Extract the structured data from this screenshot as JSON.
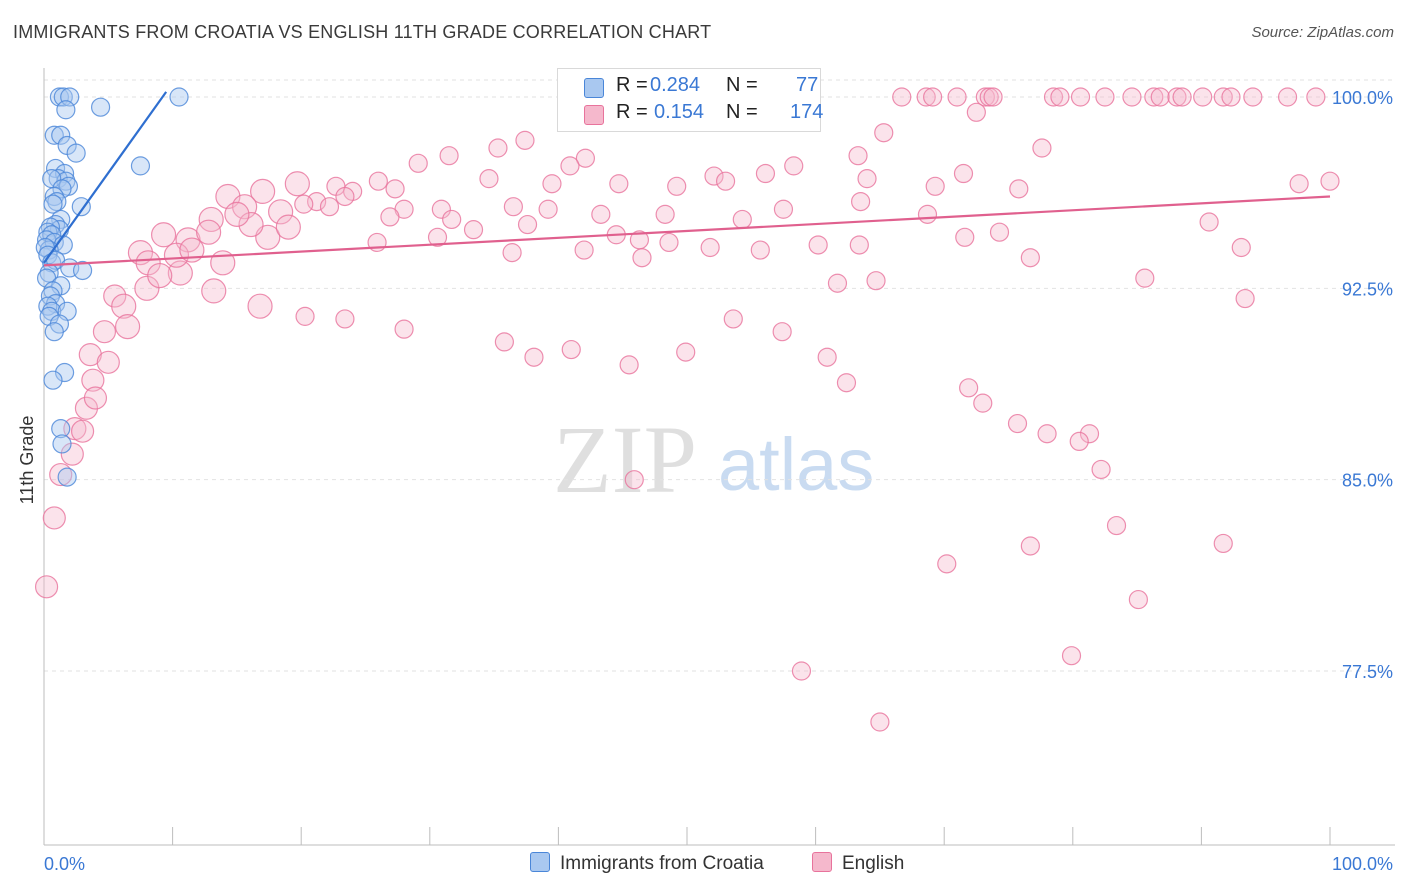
{
  "title": "IMMIGRANTS FROM CROATIA VS ENGLISH 11TH GRADE CORRELATION CHART",
  "source": "Source: ZipAtlas.com",
  "watermark": {
    "zip": "ZIP",
    "atlas": "atlas"
  },
  "legend": {
    "r_label": "R =",
    "n_label": "N =",
    "series": [
      {
        "name": "Immigrants from Croatia",
        "r": "0.284",
        "n": "77",
        "color": "#4a86d8",
        "fill": "#a9c8f0"
      },
      {
        "name": "English",
        "r": "0.154",
        "n": "174",
        "color": "#e8739c",
        "fill": "#f5b8cc"
      }
    ]
  },
  "chart_data": {
    "type": "scatter",
    "title": "IMMIGRANTS FROM CROATIA VS ENGLISH 11TH GRADE CORRELATION CHART",
    "xlabel": "",
    "ylabel": "11th Grade",
    "xlim": [
      0,
      100
    ],
    "ylim": [
      71.0,
      101.0
    ],
    "x_tick_labels": [
      "0.0%",
      "100.0%"
    ],
    "y_ticks": [
      {
        "value": 100.0,
        "label": "100.0%"
      },
      {
        "value": 92.5,
        "label": "92.5%"
      },
      {
        "value": 85.0,
        "label": "85.0%"
      },
      {
        "value": 77.5,
        "label": "77.5%"
      }
    ],
    "series": [
      {
        "name": "Immigrants from Croatia",
        "color": "#4a86d8",
        "fill": "#a9c8f0",
        "trend": {
          "x0": 0.0,
          "y0": 93.5,
          "x1": 9.5,
          "y1": 100.2
        },
        "points": [
          [
            1.2,
            100
          ],
          [
            1.5,
            100
          ],
          [
            2.0,
            100
          ],
          [
            10.5,
            100
          ],
          [
            4.4,
            99.6
          ],
          [
            1.7,
            99.5
          ],
          [
            0.8,
            98.5
          ],
          [
            1.3,
            98.5
          ],
          [
            1.8,
            98.1
          ],
          [
            2.5,
            97.8
          ],
          [
            7.5,
            97.3
          ],
          [
            0.9,
            97.2
          ],
          [
            1.6,
            97.0
          ],
          [
            1.1,
            96.8
          ],
          [
            1.7,
            96.7
          ],
          [
            0.6,
            96.8
          ],
          [
            1.9,
            96.5
          ],
          [
            1.4,
            96.4
          ],
          [
            0.8,
            96.1
          ],
          [
            1.0,
            95.9
          ],
          [
            0.7,
            95.8
          ],
          [
            2.9,
            95.7
          ],
          [
            1.3,
            95.2
          ],
          [
            0.9,
            95.0
          ],
          [
            1.2,
            94.8
          ],
          [
            0.5,
            94.9
          ],
          [
            0.3,
            94.7
          ],
          [
            0.6,
            94.6
          ],
          [
            0.2,
            94.4
          ],
          [
            0.8,
            94.3
          ],
          [
            1.5,
            94.2
          ],
          [
            0.4,
            94.0
          ],
          [
            0.1,
            94.1
          ],
          [
            0.3,
            93.8
          ],
          [
            0.6,
            93.5
          ],
          [
            0.9,
            93.6
          ],
          [
            2.0,
            93.3
          ],
          [
            3.0,
            93.2
          ],
          [
            0.4,
            93.1
          ],
          [
            0.2,
            92.9
          ],
          [
            1.3,
            92.6
          ],
          [
            0.7,
            92.4
          ],
          [
            0.5,
            92.2
          ],
          [
            0.9,
            91.9
          ],
          [
            0.3,
            91.8
          ],
          [
            0.6,
            91.6
          ],
          [
            1.8,
            91.6
          ],
          [
            0.4,
            91.4
          ],
          [
            1.2,
            91.1
          ],
          [
            0.8,
            90.8
          ],
          [
            1.6,
            89.2
          ],
          [
            0.7,
            88.9
          ],
          [
            1.3,
            87.0
          ],
          [
            1.4,
            86.4
          ],
          [
            1.8,
            85.1
          ]
        ]
      },
      {
        "name": "English",
        "color": "#e8739c",
        "fill": "#f5b8cc",
        "trend": {
          "x0": 0.0,
          "y0": 93.4,
          "x1": 100.0,
          "y1": 96.1
        },
        "points": [
          [
            66.7,
            100
          ],
          [
            68.6,
            100
          ],
          [
            69.1,
            100
          ],
          [
            71.0,
            100
          ],
          [
            73.2,
            100
          ],
          [
            73.5,
            100
          ],
          [
            73.8,
            100
          ],
          [
            78.5,
            100
          ],
          [
            79.0,
            100
          ],
          [
            80.6,
            100
          ],
          [
            82.5,
            100
          ],
          [
            84.6,
            100
          ],
          [
            86.3,
            100
          ],
          [
            86.8,
            100
          ],
          [
            88.1,
            100
          ],
          [
            88.5,
            100
          ],
          [
            90.1,
            100
          ],
          [
            91.7,
            100
          ],
          [
            92.3,
            100
          ],
          [
            94.0,
            100
          ],
          [
            96.7,
            100
          ],
          [
            98.9,
            100
          ],
          [
            59.3,
            99.5
          ],
          [
            72.5,
            99.4
          ],
          [
            53.0,
            99.6
          ],
          [
            65.3,
            98.6
          ],
          [
            77.6,
            98.0
          ],
          [
            37.4,
            98.3
          ],
          [
            35.3,
            98.0
          ],
          [
            42.1,
            97.6
          ],
          [
            31.5,
            97.7
          ],
          [
            29.1,
            97.4
          ],
          [
            63.3,
            97.7
          ],
          [
            58.3,
            97.3
          ],
          [
            71.5,
            97.0
          ],
          [
            64.0,
            96.8
          ],
          [
            56.1,
            97.0
          ],
          [
            52.1,
            96.9
          ],
          [
            40.9,
            97.3
          ],
          [
            26.0,
            96.7
          ],
          [
            27.3,
            96.4
          ],
          [
            22.7,
            96.5
          ],
          [
            24.0,
            96.3
          ],
          [
            19.7,
            96.6
          ],
          [
            17.0,
            96.3
          ],
          [
            23.4,
            96.1
          ],
          [
            34.6,
            96.8
          ],
          [
            39.5,
            96.6
          ],
          [
            44.7,
            96.6
          ],
          [
            49.2,
            96.5
          ],
          [
            53.0,
            96.7
          ],
          [
            69.3,
            96.5
          ],
          [
            75.8,
            96.4
          ],
          [
            100.0,
            96.7
          ],
          [
            14.3,
            96.1
          ],
          [
            15.6,
            95.7
          ],
          [
            18.4,
            95.5
          ],
          [
            21.2,
            95.9
          ],
          [
            28.0,
            95.6
          ],
          [
            30.9,
            95.6
          ],
          [
            36.5,
            95.7
          ],
          [
            39.2,
            95.6
          ],
          [
            43.3,
            95.4
          ],
          [
            48.3,
            95.4
          ],
          [
            54.3,
            95.2
          ],
          [
            57.5,
            95.6
          ],
          [
            63.5,
            95.9
          ],
          [
            68.7,
            95.4
          ],
          [
            13.0,
            95.2
          ],
          [
            9.3,
            94.6
          ],
          [
            11.2,
            94.4
          ],
          [
            17.4,
            94.5
          ],
          [
            25.9,
            94.3
          ],
          [
            30.6,
            94.5
          ],
          [
            42.0,
            94.0
          ],
          [
            46.3,
            94.4
          ],
          [
            51.8,
            94.1
          ],
          [
            55.7,
            94.0
          ],
          [
            60.2,
            94.2
          ],
          [
            63.4,
            94.2
          ],
          [
            7.5,
            93.9
          ],
          [
            8.1,
            93.5
          ],
          [
            10.6,
            93.1
          ],
          [
            13.2,
            92.4
          ],
          [
            5.5,
            92.2
          ],
          [
            6.2,
            91.8
          ],
          [
            16.8,
            91.8
          ],
          [
            20.3,
            91.4
          ],
          [
            23.4,
            91.3
          ],
          [
            28.0,
            90.9
          ],
          [
            35.8,
            90.4
          ],
          [
            38.1,
            89.8
          ],
          [
            41.0,
            90.1
          ],
          [
            45.5,
            89.5
          ],
          [
            49.9,
            90.0
          ],
          [
            53.6,
            91.3
          ],
          [
            57.4,
            90.8
          ],
          [
            60.9,
            89.8
          ],
          [
            62.4,
            88.8
          ],
          [
            71.9,
            88.6
          ],
          [
            73.0,
            88.0
          ],
          [
            75.7,
            87.2
          ],
          [
            78.0,
            86.8
          ],
          [
            81.3,
            86.8
          ],
          [
            80.5,
            86.5
          ],
          [
            82.2,
            85.4
          ],
          [
            4.7,
            90.8
          ],
          [
            3.6,
            89.9
          ],
          [
            3.8,
            88.9
          ],
          [
            3.3,
            87.8
          ],
          [
            2.4,
            87.0
          ],
          [
            2.2,
            86.0
          ],
          [
            1.3,
            85.2
          ],
          [
            0.8,
            83.5
          ],
          [
            0.2,
            80.8
          ],
          [
            83.4,
            83.2
          ],
          [
            76.7,
            82.4
          ],
          [
            70.2,
            81.7
          ],
          [
            91.7,
            82.5
          ],
          [
            85.1,
            80.3
          ],
          [
            79.9,
            78.1
          ],
          [
            58.9,
            77.5
          ],
          [
            65.0,
            75.5
          ],
          [
            45.9,
            85.0
          ],
          [
            36.4,
            93.9
          ],
          [
            48.6,
            94.3
          ],
          [
            61.7,
            92.7
          ],
          [
            76.7,
            93.7
          ],
          [
            64.7,
            92.8
          ],
          [
            71.6,
            94.5
          ],
          [
            90.6,
            95.1
          ],
          [
            93.1,
            94.1
          ],
          [
            74.3,
            94.7
          ],
          [
            85.6,
            92.9
          ],
          [
            93.4,
            92.1
          ],
          [
            97.6,
            96.6
          ],
          [
            46.5,
            93.7
          ],
          [
            44.5,
            94.6
          ],
          [
            31.7,
            95.2
          ],
          [
            33.4,
            94.8
          ],
          [
            37.6,
            95.0
          ],
          [
            26.9,
            95.3
          ],
          [
            22.2,
            95.7
          ],
          [
            20.2,
            95.8
          ],
          [
            12.8,
            94.7
          ],
          [
            10.3,
            93.8
          ],
          [
            13.9,
            93.5
          ],
          [
            16.1,
            95.0
          ],
          [
            19.0,
            94.9
          ],
          [
            4.0,
            88.2
          ],
          [
            3.0,
            86.9
          ],
          [
            8.0,
            92.5
          ],
          [
            6.5,
            91.0
          ],
          [
            5.0,
            89.6
          ],
          [
            9.0,
            93.0
          ],
          [
            11.5,
            94.0
          ],
          [
            15.0,
            95.4
          ]
        ]
      }
    ]
  }
}
